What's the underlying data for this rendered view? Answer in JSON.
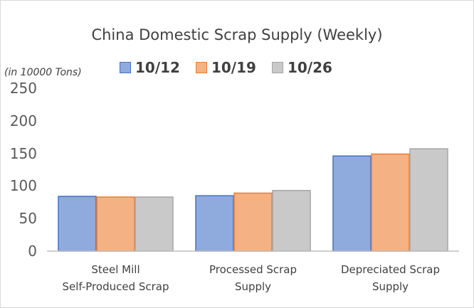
{
  "chart_data": {
    "type": "bar",
    "title": "China Domestic Scrap Supply (Weekly)",
    "unit_label": "(in 10000 Tons)",
    "categories": [
      [
        "Steel Mill",
        "Self-Produced Scrap"
      ],
      [
        "Processed Scrap",
        "Supply"
      ],
      [
        "Depreciated Scrap",
        "Supply"
      ]
    ],
    "series": [
      {
        "name": "10/12",
        "values": [
          84,
          85,
          146
        ],
        "color": "#8faadc",
        "edge": "#4472c4"
      },
      {
        "name": "10/19",
        "values": [
          83,
          89,
          149
        ],
        "color": "#f4b183",
        "edge": "#ed7d31"
      },
      {
        "name": "10/26",
        "values": [
          83,
          93,
          157
        ],
        "color": "#c9c9c9",
        "edge": "#a5a5a5"
      }
    ],
    "yticks": [
      0,
      50,
      100,
      150,
      200,
      250
    ],
    "ylim": [
      0,
      250
    ],
    "grid": false,
    "legend_position": "top"
  }
}
